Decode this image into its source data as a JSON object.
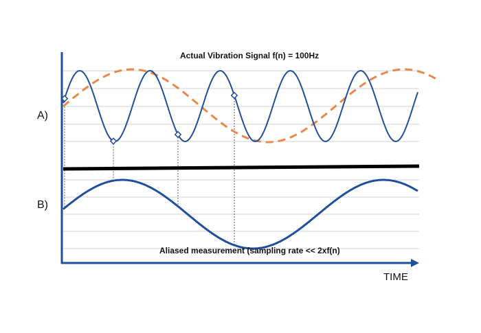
{
  "title_a": "Actual Vibration Signal f(n) = 100Hz",
  "caption_b": "Aliased measurement (sampling rate << 2xf(n)",
  "panel_a_label": "A)",
  "panel_b_label": "B)",
  "time_label": "TIME",
  "colors": {
    "actual_signal": "#1f4e9c",
    "alias_dashed": "#e8884a",
    "measured_signal": "#1f4e9c",
    "divider": "#000000",
    "axis": "#1f4e9c",
    "grid": "#d0d0d0",
    "sample_drop": "#555555"
  },
  "diagram": {
    "actual_cycles": 5,
    "alias_cycles": 0.8,
    "measured_cycles": 1.25,
    "sample_count": 4
  }
}
